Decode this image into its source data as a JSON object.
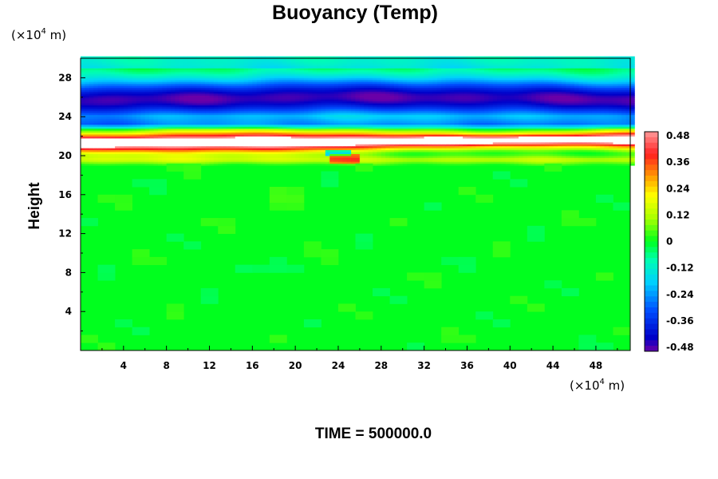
{
  "chart_data": {
    "type": "heatmap",
    "title": "Buoyancy (Temp)",
    "ylabel": "Height",
    "xlabel": "",
    "x_unit": {
      "prefix": "(×10",
      "exponent": "4",
      "suffix": " m)"
    },
    "y_unit": {
      "prefix": "(×10",
      "exponent": "4",
      "suffix": " m)"
    },
    "xlim": [
      0,
      51.2
    ],
    "ylim": [
      0,
      30
    ],
    "x_ticks": [
      4,
      8,
      12,
      16,
      20,
      24,
      28,
      32,
      36,
      40,
      44,
      48
    ],
    "y_ticks": [
      4,
      8,
      12,
      16,
      20,
      24,
      28
    ],
    "colorbar": {
      "min": -0.48,
      "max": 0.48,
      "ticks": [
        "0.48",
        "0.36",
        "0.24",
        "0.12",
        "0",
        "-0.12",
        "-0.24",
        "-0.36",
        "-0.48"
      ],
      "stops": [
        {
          "v": -0.48,
          "color": "#6a00a8"
        },
        {
          "v": -0.42,
          "color": "#0000c8"
        },
        {
          "v": -0.3,
          "color": "#0050ff"
        },
        {
          "v": -0.18,
          "color": "#00d0ff"
        },
        {
          "v": -0.08,
          "color": "#00ffb0"
        },
        {
          "v": 0.0,
          "color": "#00ff1e"
        },
        {
          "v": 0.1,
          "color": "#a8ff00"
        },
        {
          "v": 0.2,
          "color": "#ffff00"
        },
        {
          "v": 0.28,
          "color": "#ffa000"
        },
        {
          "v": 0.38,
          "color": "#ff2020"
        },
        {
          "v": 0.48,
          "color": "#ff9a9a"
        }
      ]
    },
    "field_description": "green near-zero field up to ~20; thin warm white/red band ~20.5-22.5; blue negative band ~23-29; cyan strip near top"
  },
  "footer": {
    "time_text": "TIME = 500000.0"
  }
}
